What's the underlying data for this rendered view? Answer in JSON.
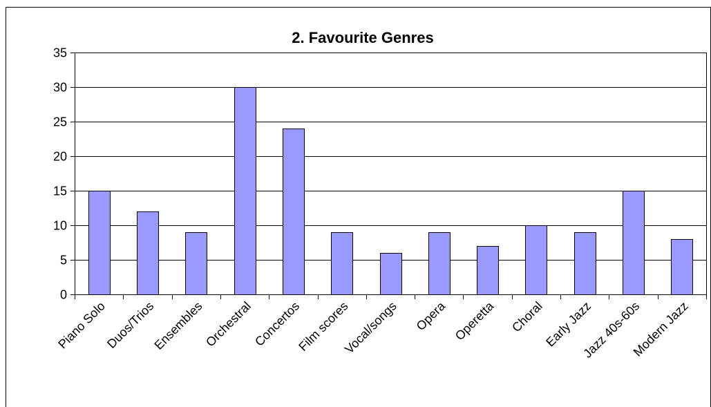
{
  "chart_data": {
    "type": "bar",
    "title": "2. Favourite Genres",
    "xlabel": "",
    "ylabel": "",
    "categories": [
      "Piano Solo",
      "Duos/Trios",
      "Ensembles",
      "Orchestral",
      "Concertos",
      "Film scores",
      "Vocal/songs",
      "Opera",
      "Operetta",
      "Choral",
      "Early Jazz",
      "Jazz 40s-60s",
      "Modern Jazz"
    ],
    "values": [
      15,
      12,
      9,
      30,
      24,
      9,
      6,
      9,
      7,
      10,
      9,
      15,
      8
    ],
    "ylim": [
      0,
      35
    ],
    "yticks": [
      0,
      5,
      10,
      15,
      20,
      25,
      30,
      35
    ],
    "grid": true,
    "legend": "none",
    "colors": {
      "bar_fill": "#9999ff",
      "bar_stroke": "#000000",
      "grid": "#000000"
    }
  }
}
